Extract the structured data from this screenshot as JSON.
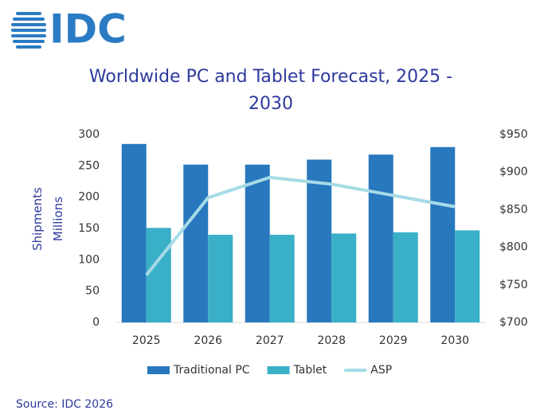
{
  "logo": "IDC",
  "chart_data": {
    "type": "bar-line",
    "title": "Worldwide PC and Tablet Forecast, 2025 - 2030",
    "ylabel": "Shipments Millions",
    "categories": [
      "2025",
      "2026",
      "2027",
      "2028",
      "2029",
      "2030"
    ],
    "series": [
      {
        "name": "Traditional PC",
        "color": "#2878be",
        "type": "bar",
        "values": [
          285,
          252,
          252,
          260,
          268,
          280
        ]
      },
      {
        "name": "Tablet",
        "color": "#3aafc8",
        "type": "bar",
        "values": [
          151,
          140,
          140,
          142,
          144,
          147
        ]
      },
      {
        "name": "ASP",
        "color": "#a5dbe6",
        "type": "line",
        "axis": "y2",
        "values": [
          763,
          866,
          893,
          884,
          869,
          854
        ]
      }
    ],
    "ylim": [
      0,
      300
    ],
    "yticks": [
      0,
      50,
      100,
      150,
      200,
      250,
      300
    ],
    "y2lim": [
      700,
      950
    ],
    "y2ticks": [
      {
        "value": 700,
        "label": "$700"
      },
      {
        "value": 750,
        "label": "$750"
      },
      {
        "value": 800,
        "label": "$800"
      },
      {
        "value": 850,
        "label": "$850"
      },
      {
        "value": 900,
        "label": "$900"
      },
      {
        "value": 950,
        "label": "$950"
      }
    ],
    "legend": "bottom",
    "grid": false
  },
  "source": "Source: IDC 2026"
}
